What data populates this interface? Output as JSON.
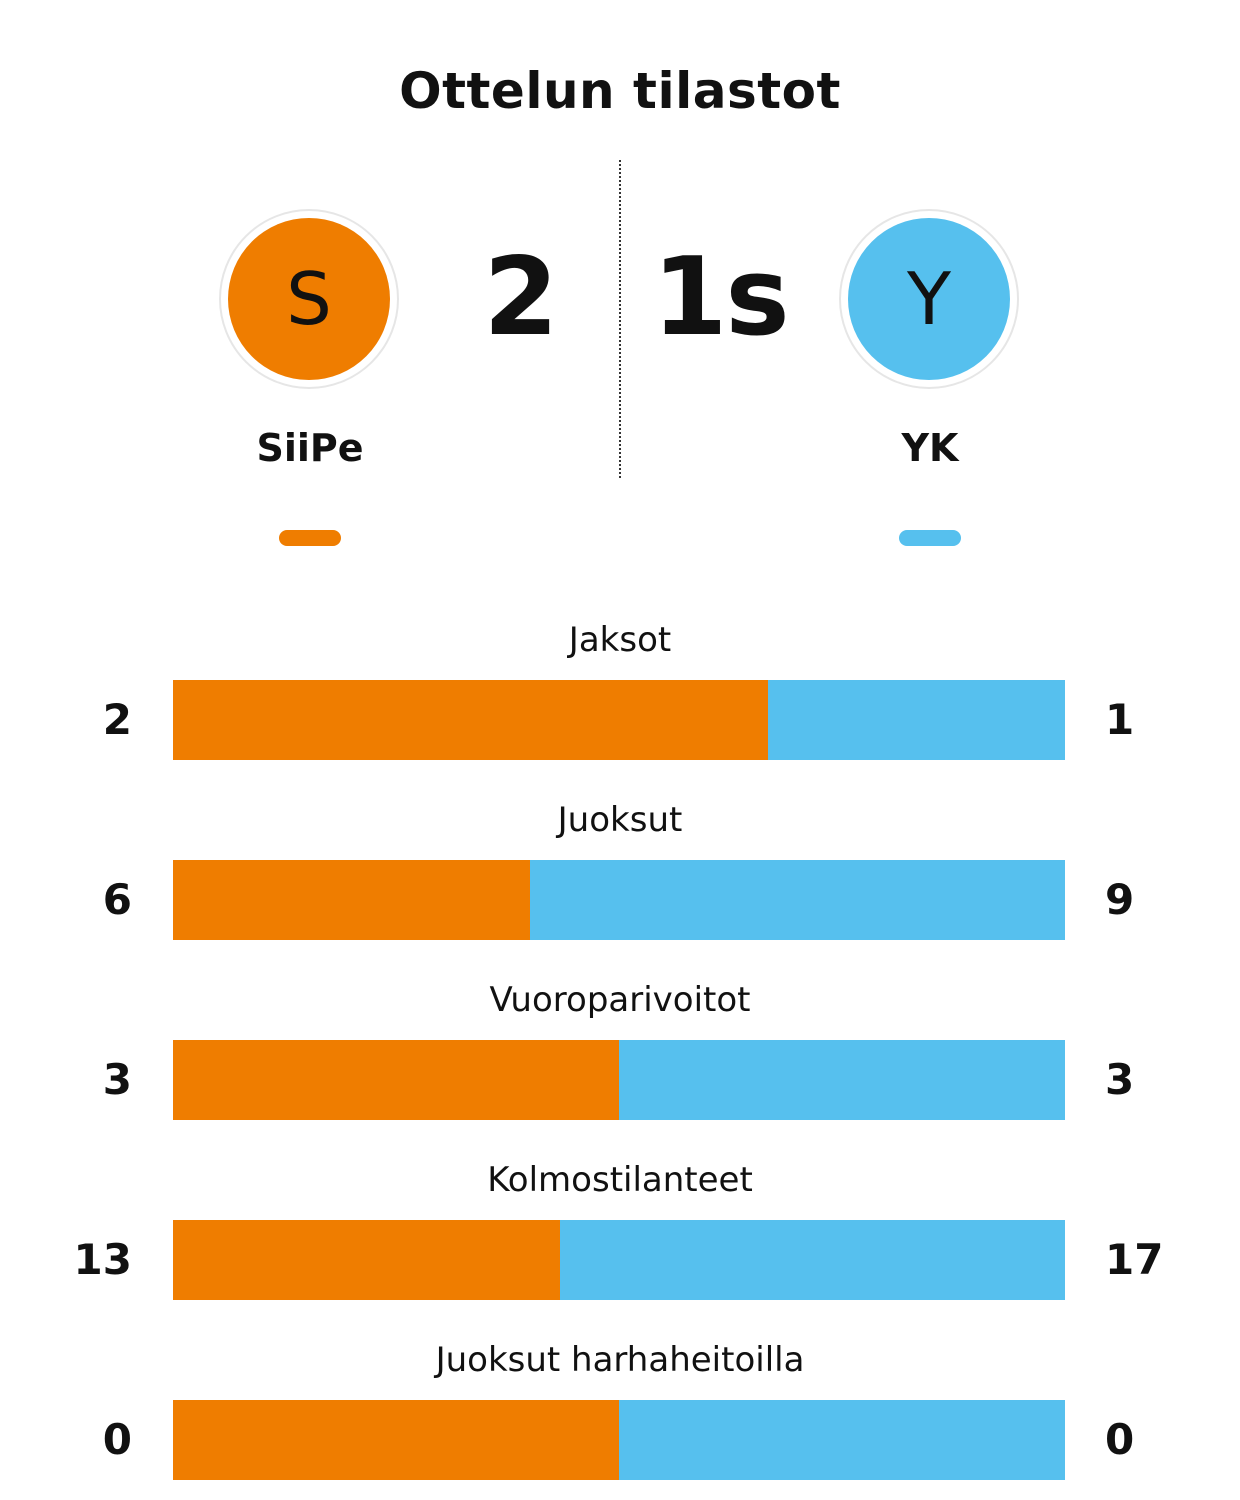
{
  "title": "Ottelun tilastot",
  "colors": {
    "home": "#ef7d00",
    "away": "#56c0ee"
  },
  "home": {
    "name": "SiiPe",
    "initial": "S",
    "score": "2"
  },
  "away": {
    "name": "YK",
    "initial": "Y",
    "score": "1s"
  },
  "chart_data": {
    "type": "bar",
    "orientation": "horizontal-stacked",
    "title": "Ottelun tilastot",
    "categories": [
      "Jaksot",
      "Juoksut",
      "Vuoroparivoitot",
      "Kolmostilanteet",
      "Juoksut harhaheitoilla"
    ],
    "series": [
      {
        "name": "SiiPe",
        "values": [
          2,
          6,
          3,
          13,
          0
        ]
      },
      {
        "name": "YK",
        "values": [
          1,
          9,
          3,
          17,
          0
        ]
      }
    ],
    "value_labels": {
      "home": [
        "2",
        "6",
        "3",
        "13",
        "0"
      ],
      "away": [
        "1",
        "9",
        "3",
        "17",
        "0"
      ]
    },
    "legend": "top",
    "grid": false
  }
}
